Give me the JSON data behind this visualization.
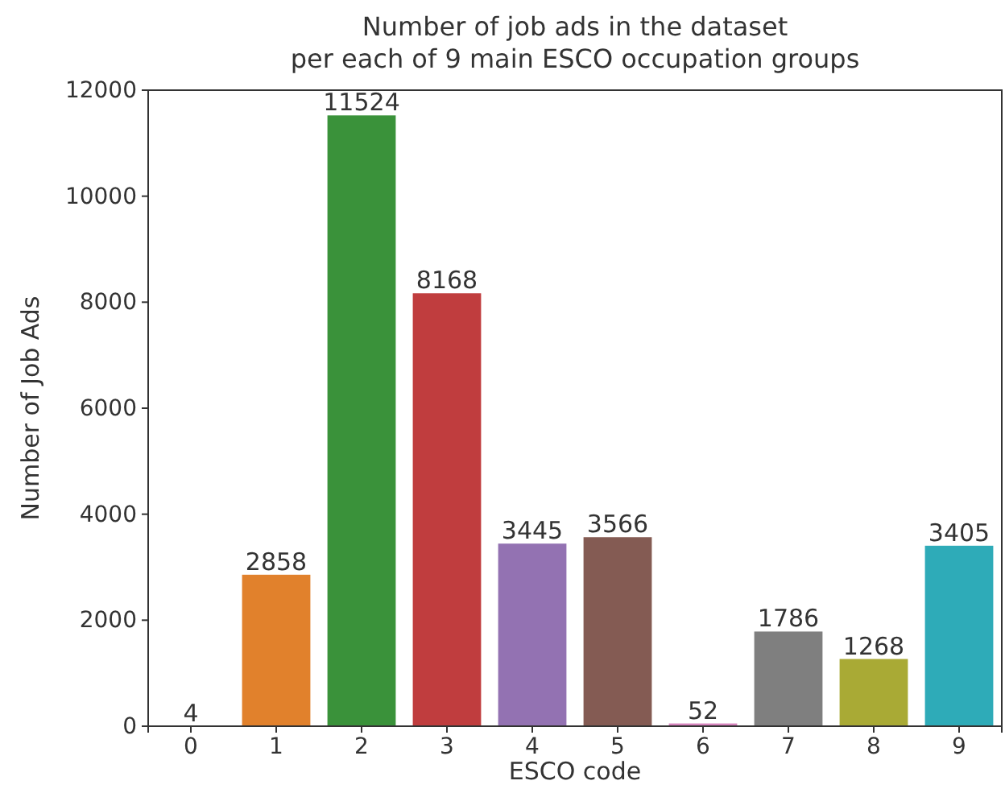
{
  "chart_data": {
    "type": "bar",
    "title": "Number of job ads in the dataset\nper each of 9 main ESCO occupation groups",
    "xlabel": "ESCO code",
    "ylabel": "Number of Job Ads",
    "categories": [
      "0",
      "1",
      "2",
      "3",
      "4",
      "5",
      "6",
      "7",
      "8",
      "9"
    ],
    "values": [
      4,
      2858,
      11524,
      8168,
      3445,
      3566,
      52,
      1786,
      1268,
      3405
    ],
    "colors": [
      "#3274a1",
      "#e1812c",
      "#3a923a",
      "#c03d3e",
      "#9372b2",
      "#845b53",
      "#d684bd",
      "#7f7f7f",
      "#a9aa35",
      "#2eabb8"
    ],
    "ylim": [
      0,
      12000
    ],
    "yticks": [
      0,
      2000,
      4000,
      6000,
      8000,
      10000,
      12000
    ],
    "data_labels": true,
    "grid": false
  }
}
